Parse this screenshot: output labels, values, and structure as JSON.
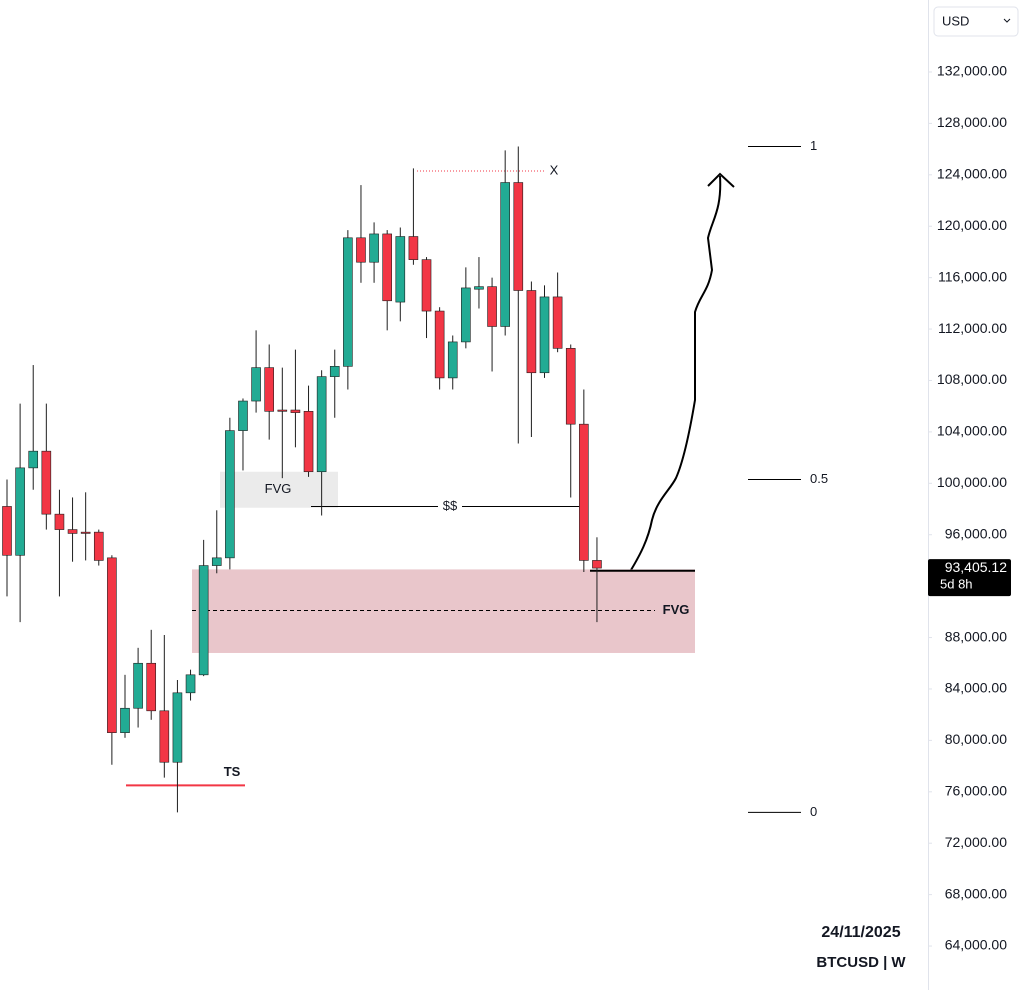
{
  "chart_data": {
    "type": "candlestick",
    "symbol_line": "BTCUSD | W",
    "date": "24/11/2025",
    "currency": "USD",
    "up_color": "#22ab94",
    "down_color": "#f23645",
    "open": [
      98200,
      94400,
      101200,
      102500,
      97600,
      96400,
      96200,
      96200,
      94200,
      80600,
      82500,
      86000,
      82300,
      78300,
      83700,
      85100,
      93600,
      94200,
      104100,
      106400,
      109000,
      105700,
      105700,
      105600,
      100900,
      108300,
      109100,
      119100,
      117200,
      119400,
      114100,
      119200,
      117400,
      113400,
      108200,
      111000,
      115100,
      115300,
      112200,
      123400,
      115000,
      108600,
      114500,
      110500,
      104600,
      94000
    ],
    "high": [
      100300,
      106200,
      109200,
      106200,
      99500,
      98900,
      99300,
      96400,
      94400,
      85100,
      87200,
      88600,
      88200,
      84700,
      85500,
      95600,
      97900,
      105100,
      106600,
      111900,
      110800,
      109000,
      110400,
      107600,
      108800,
      110400,
      119700,
      123200,
      120300,
      119700,
      119900,
      124500,
      117600,
      113700,
      111500,
      116800,
      117600,
      116000,
      125900,
      126200,
      115700,
      115400,
      116400,
      110800,
      107300,
      95800
    ],
    "low": [
      91200,
      89200,
      99500,
      96400,
      91200,
      93900,
      94000,
      93600,
      78100,
      80200,
      81000,
      81600,
      77100,
      74400,
      83100,
      85000,
      93000,
      93300,
      101000,
      105500,
      103400,
      100400,
      102800,
      100500,
      97500,
      105100,
      107300,
      115600,
      115600,
      111900,
      112600,
      117000,
      111300,
      107300,
      107300,
      110500,
      113600,
      108700,
      111500,
      103100,
      103600,
      108200,
      110200,
      98900,
      93100,
      89200
    ],
    "close": [
      94400,
      101200,
      102500,
      97600,
      96400,
      96100,
      96100,
      94000,
      80600,
      82500,
      86000,
      82300,
      78300,
      83700,
      85100,
      93600,
      94200,
      104100,
      106400,
      109000,
      105600,
      105600,
      105500,
      100900,
      108300,
      109100,
      119100,
      117200,
      119400,
      114200,
      119200,
      117400,
      113400,
      108200,
      111000,
      115200,
      115300,
      112200,
      123400,
      115000,
      108600,
      114500,
      110500,
      104600,
      94000,
      93405.12
    ],
    "last_price": {
      "value": 93405.12,
      "label": "93,405.12"
    },
    "countdown": "5d 8h",
    "ylim": [
      60580,
      137600
    ],
    "yticks": [
      {
        "value": 64000,
        "label": "64,000.00"
      },
      {
        "value": 68000,
        "label": "68,000.00"
      },
      {
        "value": 72000,
        "label": "72,000.00"
      },
      {
        "value": 76000,
        "label": "76,000.00"
      },
      {
        "value": 80000,
        "label": "80,000.00"
      },
      {
        "value": 84000,
        "label": "84,000.00"
      },
      {
        "value": 88000,
        "label": "88,000.00"
      },
      {
        "value": 92000,
        "label": "92,000.00"
      },
      {
        "value": 96000,
        "label": "96,000.00"
      },
      {
        "value": 100000,
        "label": "100,000.00"
      },
      {
        "value": 104000,
        "label": "104,000.00"
      },
      {
        "value": 108000,
        "label": "108,000.00"
      },
      {
        "value": 112000,
        "label": "112,000.00"
      },
      {
        "value": 116000,
        "label": "116,000.00"
      },
      {
        "value": 120000,
        "label": "120,000.00"
      },
      {
        "value": 124000,
        "label": "124,000.00"
      },
      {
        "value": 128000,
        "label": "128,000.00"
      },
      {
        "value": 132000,
        "label": "132,000.00"
      }
    ],
    "fib": {
      "high": 126200,
      "low": 74400,
      "levels": [
        1,
        0.5,
        0
      ]
    },
    "fvg_upper": {
      "label": "FVG",
      "top": 100900,
      "bottom": 98100
    },
    "fvg_lower": {
      "label": "FVG",
      "top": 93300,
      "bottom": 86800,
      "mid": 90100
    },
    "liquidity": {
      "label": "$$",
      "price": 98200
    },
    "high_mark": {
      "label": "X",
      "price": 124300
    },
    "low_mark": {
      "label": "TS",
      "price": 76500
    },
    "support_line": 93200
  }
}
